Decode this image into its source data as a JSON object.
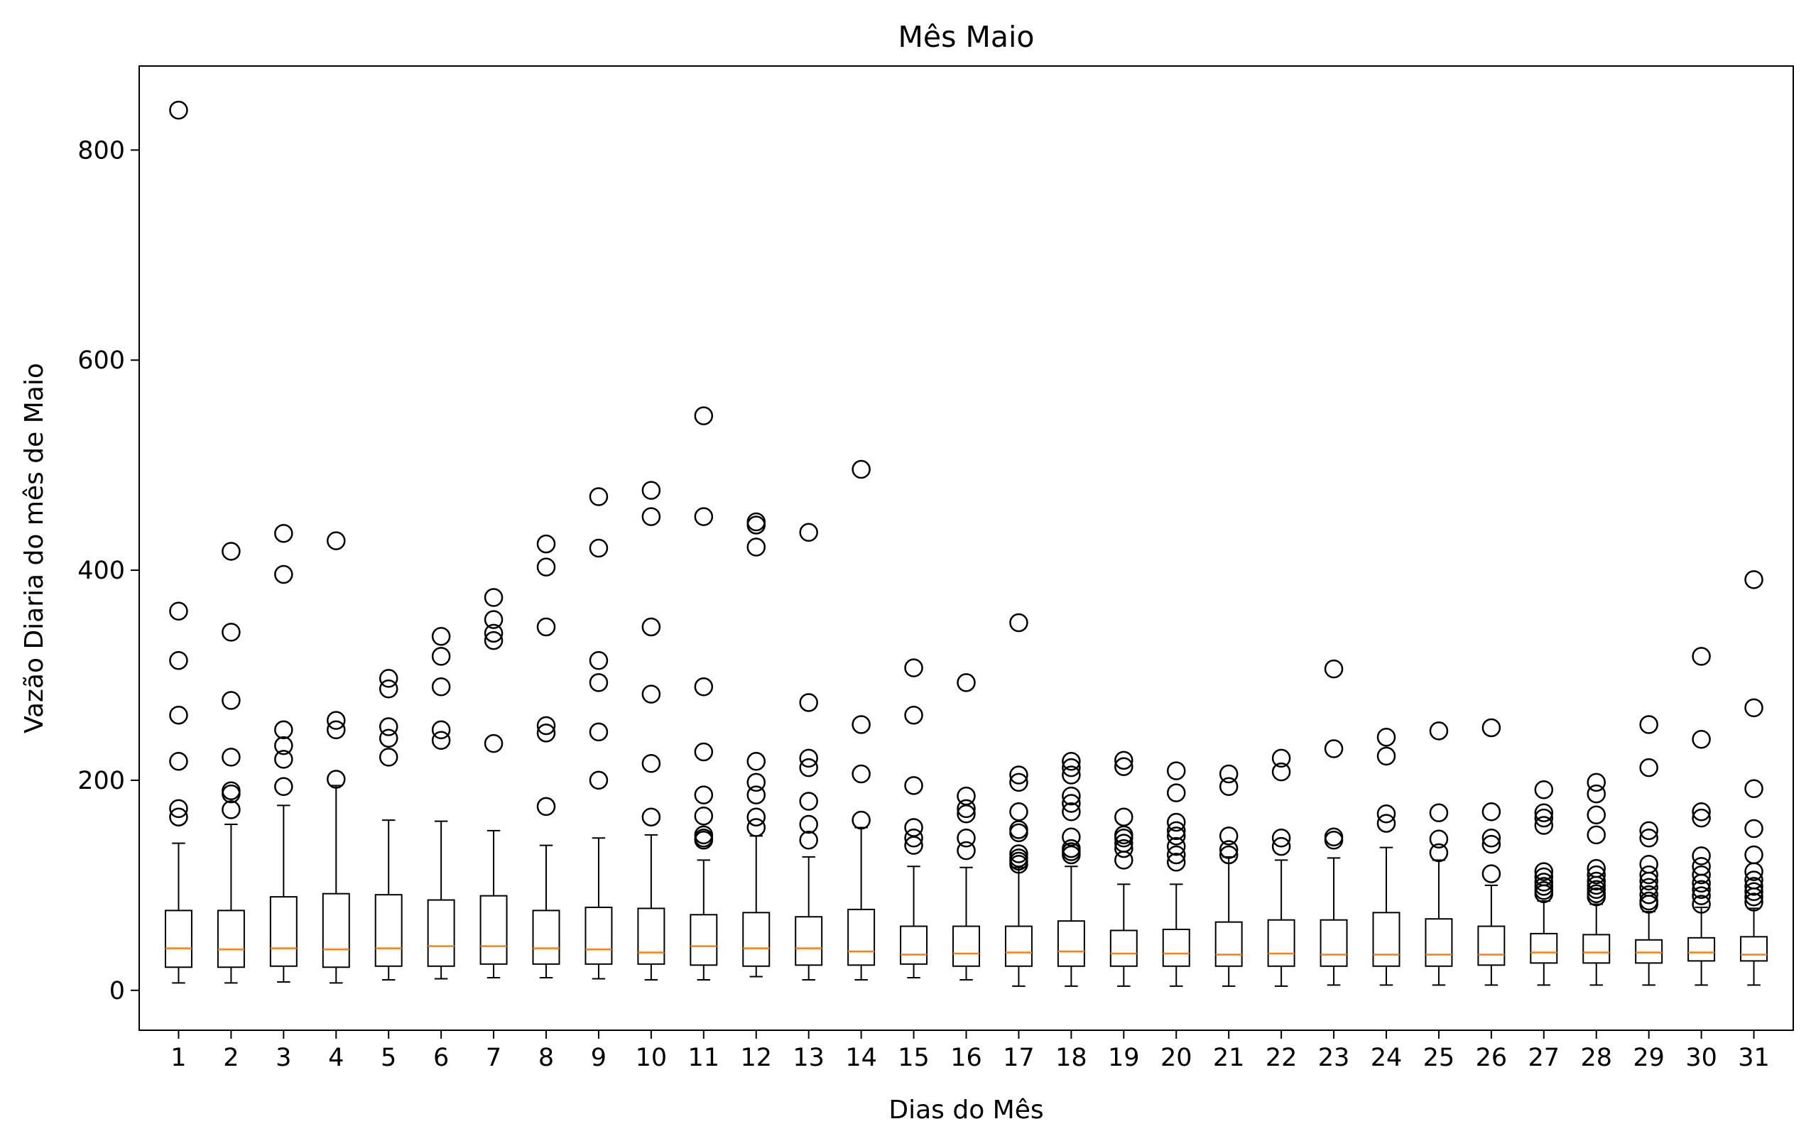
{
  "chart_data": {
    "type": "box",
    "title": "Mês Maio",
    "xlabel": "Dias do Mês",
    "ylabel": "Vazão Diaria do mês de Maio",
    "categories": [
      "1",
      "2",
      "3",
      "4",
      "5",
      "6",
      "7",
      "8",
      "9",
      "10",
      "11",
      "12",
      "13",
      "14",
      "15",
      "16",
      "17",
      "18",
      "19",
      "20",
      "21",
      "22",
      "23",
      "24",
      "25",
      "26",
      "27",
      "28",
      "29",
      "30",
      "31"
    ],
    "ylim": [
      -38,
      880
    ],
    "yticks": [
      0,
      200,
      400,
      600,
      800
    ],
    "grid": false,
    "colors": {
      "box": "#000000",
      "median": "#ff7f0e",
      "outlier": "#000000"
    },
    "boxes": [
      {
        "whislo": 7,
        "q1": 22,
        "med": 40,
        "q3": 76,
        "whishi": 140,
        "fliers": [
          838,
          361,
          314,
          262,
          218,
          173,
          165
        ]
      },
      {
        "whislo": 7,
        "q1": 22,
        "med": 39,
        "q3": 76,
        "whishi": 158,
        "fliers": [
          418,
          341,
          276,
          222,
          190,
          187,
          172
        ]
      },
      {
        "whislo": 8,
        "q1": 23,
        "med": 40,
        "q3": 89,
        "whishi": 176,
        "fliers": [
          435,
          396,
          248,
          233,
          220,
          194
        ]
      },
      {
        "whislo": 7,
        "q1": 22,
        "med": 39,
        "q3": 92,
        "whishi": 195,
        "fliers": [
          428,
          257,
          248,
          201
        ]
      },
      {
        "whislo": 10,
        "q1": 23,
        "med": 40,
        "q3": 91,
        "whishi": 162,
        "fliers": [
          297,
          287,
          251,
          240,
          222
        ]
      },
      {
        "whislo": 11,
        "q1": 23,
        "med": 42,
        "q3": 86,
        "whishi": 161,
        "fliers": [
          337,
          318,
          289,
          248,
          238
        ]
      },
      {
        "whislo": 12,
        "q1": 25,
        "med": 42,
        "q3": 90,
        "whishi": 152,
        "fliers": [
          374,
          353,
          340,
          333,
          235
        ]
      },
      {
        "whislo": 12,
        "q1": 25,
        "med": 40,
        "q3": 76,
        "whishi": 138,
        "fliers": [
          425,
          403,
          346,
          252,
          245,
          175
        ]
      },
      {
        "whislo": 11,
        "q1": 25,
        "med": 39,
        "q3": 79,
        "whishi": 145,
        "fliers": [
          470,
          421,
          314,
          293,
          246,
          200
        ]
      },
      {
        "whislo": 10,
        "q1": 25,
        "med": 36,
        "q3": 78,
        "whishi": 148,
        "fliers": [
          476,
          451,
          346,
          282,
          216,
          165
        ]
      },
      {
        "whislo": 10,
        "q1": 24,
        "med": 42,
        "q3": 72,
        "whishi": 124,
        "fliers": [
          547,
          451,
          289,
          227,
          186,
          166,
          148,
          145,
          143
        ]
      },
      {
        "whislo": 13,
        "q1": 23,
        "med": 40,
        "q3": 74,
        "whishi": 147,
        "fliers": [
          446,
          443,
          422,
          218,
          198,
          186,
          165,
          155
        ]
      },
      {
        "whislo": 10,
        "q1": 24,
        "med": 40,
        "q3": 70,
        "whishi": 127,
        "fliers": [
          436,
          274,
          221,
          212,
          180,
          158,
          143
        ]
      },
      {
        "whislo": 10,
        "q1": 24,
        "med": 37,
        "q3": 77,
        "whishi": 155,
        "fliers": [
          496,
          253,
          206,
          162
        ]
      },
      {
        "whislo": 12,
        "q1": 25,
        "med": 34,
        "q3": 61,
        "whishi": 118,
        "fliers": [
          307,
          262,
          195,
          155,
          145,
          138
        ]
      },
      {
        "whislo": 10,
        "q1": 23,
        "med": 35,
        "q3": 61,
        "whishi": 117,
        "fliers": [
          293,
          185,
          173,
          168,
          145,
          133
        ]
      },
      {
        "whislo": 4,
        "q1": 23,
        "med": 36,
        "q3": 61,
        "whishi": 117,
        "fliers": [
          350,
          205,
          198,
          170,
          153,
          150,
          130,
          126,
          123,
          120
        ]
      },
      {
        "whislo": 4,
        "q1": 23,
        "med": 37,
        "q3": 66,
        "whishi": 118,
        "fliers": [
          218,
          212,
          205,
          185,
          178,
          170,
          146,
          135,
          132,
          129
        ]
      },
      {
        "whislo": 4,
        "q1": 23,
        "med": 35,
        "q3": 57,
        "whishi": 101,
        "fliers": [
          219,
          213,
          165,
          148,
          145,
          140,
          135,
          124
        ]
      },
      {
        "whislo": 4,
        "q1": 23,
        "med": 35,
        "q3": 58,
        "whishi": 101,
        "fliers": [
          209,
          188,
          160,
          152,
          147,
          137,
          129,
          122
        ]
      },
      {
        "whislo": 4,
        "q1": 23,
        "med": 34,
        "q3": 65,
        "whishi": 127,
        "fliers": [
          206,
          194,
          147,
          134,
          129
        ]
      },
      {
        "whislo": 4,
        "q1": 23,
        "med": 35,
        "q3": 67,
        "whishi": 124,
        "fliers": [
          221,
          208,
          145,
          137
        ]
      },
      {
        "whislo": 5,
        "q1": 23,
        "med": 34,
        "q3": 67,
        "whishi": 126,
        "fliers": [
          306,
          230,
          146,
          143
        ]
      },
      {
        "whislo": 5,
        "q1": 23,
        "med": 34,
        "q3": 74,
        "whishi": 136,
        "fliers": [
          241,
          223,
          168,
          159
        ]
      },
      {
        "whislo": 5,
        "q1": 23,
        "med": 34,
        "q3": 68,
        "whishi": 124,
        "fliers": [
          247,
          169,
          144,
          131
        ]
      },
      {
        "whislo": 5,
        "q1": 24,
        "med": 34,
        "q3": 61,
        "whishi": 100,
        "fliers": [
          250,
          170,
          145,
          139,
          111
        ]
      },
      {
        "whislo": 5,
        "q1": 26,
        "med": 36,
        "q3": 54,
        "whishi": 85,
        "fliers": [
          191,
          169,
          164,
          157,
          113,
          108,
          103,
          99,
          95,
          92
        ]
      },
      {
        "whislo": 5,
        "q1": 26,
        "med": 36,
        "q3": 53,
        "whishi": 82,
        "fliers": [
          198,
          187,
          167,
          148,
          116,
          110,
          104,
          100,
          96,
          92,
          89
        ]
      },
      {
        "whislo": 5,
        "q1": 26,
        "med": 36,
        "q3": 48,
        "whishi": 75,
        "fliers": [
          253,
          212,
          152,
          145,
          120,
          110,
          104,
          98,
          91,
          85,
          82
        ]
      },
      {
        "whislo": 5,
        "q1": 28,
        "med": 36,
        "q3": 50,
        "whishi": 79,
        "fliers": [
          318,
          239,
          170,
          164,
          128,
          118,
          110,
          102,
          96,
          90,
          82
        ]
      },
      {
        "whislo": 5,
        "q1": 28,
        "med": 34,
        "q3": 51,
        "whishi": 78,
        "fliers": [
          391,
          269,
          192,
          154,
          129,
          113,
          105,
          99,
          94,
          89,
          84
        ]
      }
    ]
  }
}
